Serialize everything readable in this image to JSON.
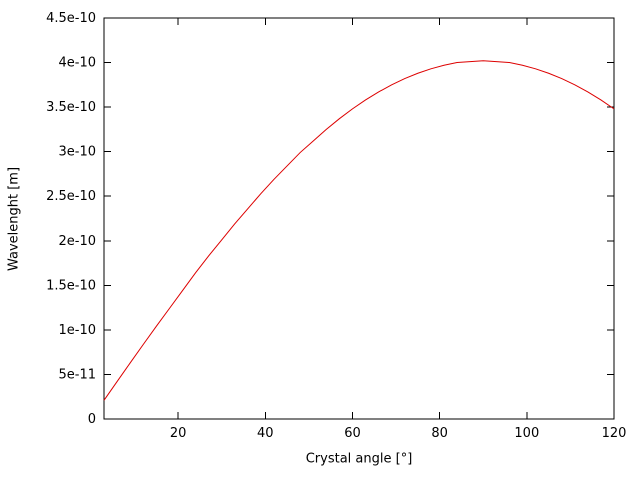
{
  "chart_data": {
    "type": "line",
    "title": "",
    "xlabel": "Crystal angle [°]",
    "ylabel": "Wavelenght [m]",
    "xlim": [
      3,
      120
    ],
    "ylim": [
      0,
      4.5e-10
    ],
    "grid": false,
    "legend": null,
    "background": "#ffffff",
    "axis_color": "#000000",
    "xticks": [
      20,
      40,
      60,
      80,
      100,
      120
    ],
    "xtick_labels": [
      "20",
      "40",
      "60",
      "80",
      "100",
      "120"
    ],
    "yticks": [
      0,
      5e-11,
      1e-10,
      1.5e-10,
      2e-10,
      2.5e-10,
      3e-10,
      3.5e-10,
      4e-10,
      4.5e-10
    ],
    "ytick_labels": [
      "0",
      "5e-11",
      "1e-10",
      "1.5e-10",
      "2e-10",
      "2.5e-10",
      "3e-10",
      "3.5e-10",
      "4e-10",
      "4.5e-10"
    ],
    "series": [
      {
        "name": "wavelength",
        "color": "#dd0000",
        "x": [
          3,
          6,
          9,
          12,
          15,
          18,
          21,
          24,
          27,
          30,
          33,
          36,
          39,
          42,
          45,
          48,
          51,
          54,
          57,
          60,
          63,
          66,
          69,
          72,
          75,
          78,
          81,
          84,
          87,
          90,
          93,
          96,
          99,
          102,
          105,
          108,
          111,
          114,
          117,
          120
        ],
        "y": [
          2.1e-11,
          4.2e-11,
          6.29e-11,
          8.36e-11,
          1.04e-10,
          1.24e-10,
          1.44e-10,
          1.64e-10,
          1.83e-10,
          2.01e-10,
          2.19e-10,
          2.36e-10,
          2.53e-10,
          2.69e-10,
          2.84e-10,
          2.99e-10,
          3.12e-10,
          3.25e-10,
          3.37e-10,
          3.48e-10,
          3.58e-10,
          3.67e-10,
          3.75e-10,
          3.82e-10,
          3.88e-10,
          3.93e-10,
          3.97e-10,
          4e-10,
          4.01e-10,
          4.02e-10,
          4.01e-10,
          4e-10,
          3.97e-10,
          3.93e-10,
          3.88e-10,
          3.82e-10,
          3.75e-10,
          3.67e-10,
          3.58e-10,
          3.48e-10
        ]
      }
    ]
  }
}
